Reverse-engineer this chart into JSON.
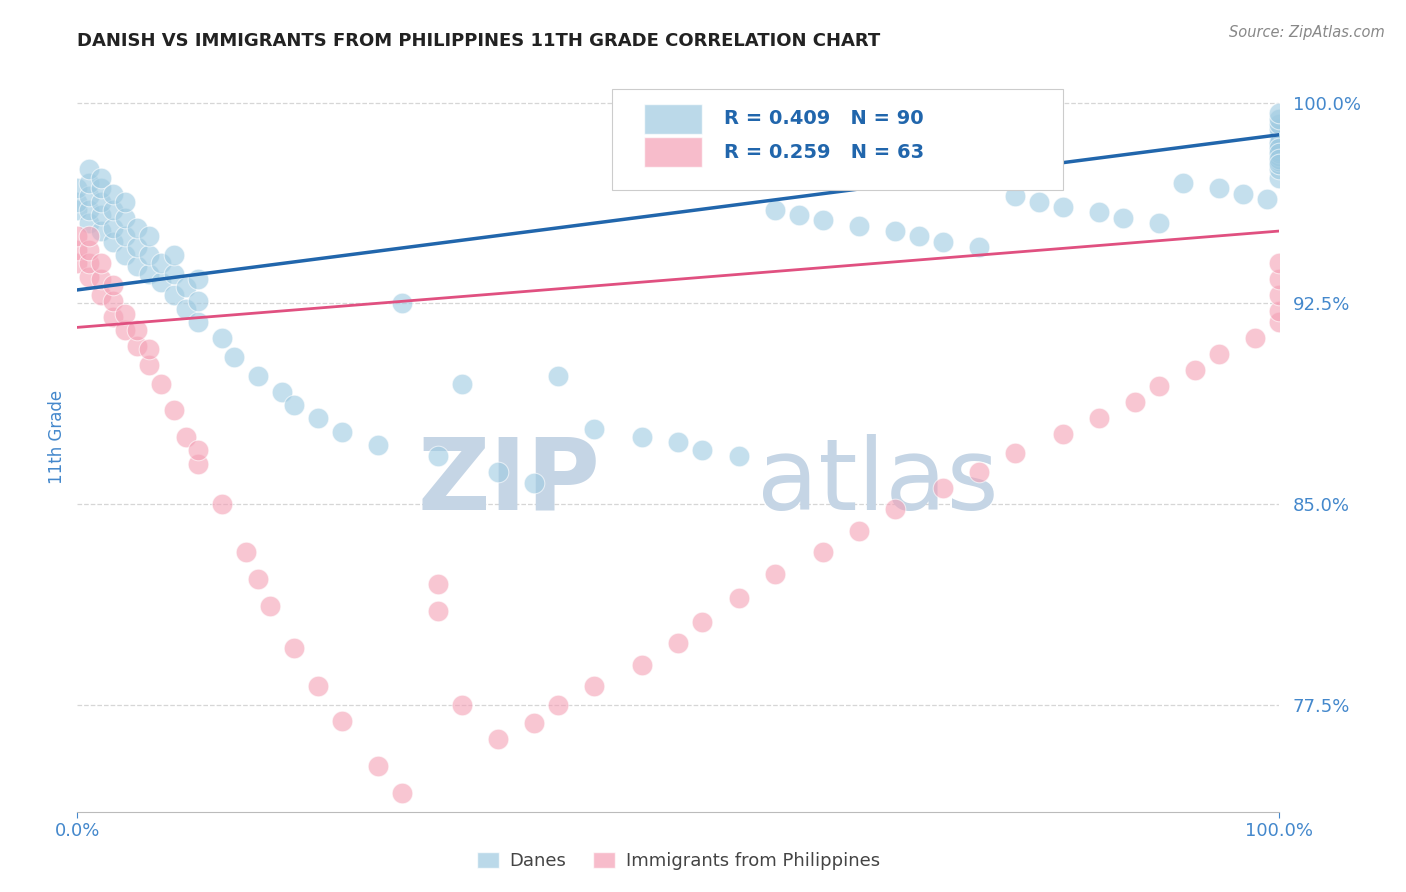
{
  "title": "DANISH VS IMMIGRANTS FROM PHILIPPINES 11TH GRADE CORRELATION CHART",
  "source_text": "Source: ZipAtlas.com",
  "ylabel": "11th Grade",
  "xlim": [
    0.0,
    1.0
  ],
  "ylim": [
    0.735,
    1.015
  ],
  "ytick_vals": [
    0.775,
    0.85,
    0.925,
    1.0
  ],
  "ytick_labels": [
    "77.5%",
    "85.0%",
    "92.5%",
    "100.0%"
  ],
  "xtick_vals": [
    0.0,
    1.0
  ],
  "xtick_labels": [
    "0.0%",
    "100.0%"
  ],
  "legend_r_danish": "R = 0.409",
  "legend_n_danish": "N = 90",
  "legend_r_phil": "R = 0.259",
  "legend_n_phil": "N = 63",
  "danish_color": "#9ecae1",
  "phil_color": "#f4a0b5",
  "trendline_danish_color": "#2166ac",
  "trendline_phil_color": "#e05080",
  "legend_text_color": "#2166ac",
  "tick_color": "#4488cc",
  "title_color": "#222222",
  "watermark_zip_color": "#d0dde8",
  "watermark_atlas_color": "#c0ccd8",
  "grid_color": "#cccccc",
  "background_color": "#ffffff",
  "danish_trend_y_start": 0.93,
  "danish_trend_y_end": 0.988,
  "phil_trend_y_start": 0.916,
  "phil_trend_y_end": 0.952,
  "danes_x": [
    0.0,
    0.0,
    0.0,
    0.01,
    0.01,
    0.01,
    0.01,
    0.01,
    0.02,
    0.02,
    0.02,
    0.02,
    0.02,
    0.03,
    0.03,
    0.03,
    0.03,
    0.04,
    0.04,
    0.04,
    0.04,
    0.05,
    0.05,
    0.05,
    0.06,
    0.06,
    0.06,
    0.07,
    0.07,
    0.08,
    0.08,
    0.08,
    0.09,
    0.09,
    0.1,
    0.1,
    0.1,
    0.12,
    0.13,
    0.15,
    0.17,
    0.18,
    0.2,
    0.22,
    0.25,
    0.27,
    0.3,
    0.32,
    0.35,
    0.38,
    0.4,
    0.43,
    0.47,
    0.5,
    0.52,
    0.55,
    0.58,
    0.6,
    0.62,
    0.65,
    0.68,
    0.7,
    0.72,
    0.75,
    0.78,
    0.8,
    0.82,
    0.85,
    0.87,
    0.9,
    0.92,
    0.95,
    0.97,
    0.99,
    1.0,
    1.0,
    1.0,
    1.0,
    1.0,
    1.0,
    1.0,
    1.0,
    1.0,
    1.0,
    1.0,
    1.0,
    1.0,
    1.0,
    1.0,
    1.0
  ],
  "danes_y": [
    0.96,
    0.963,
    0.968,
    0.955,
    0.96,
    0.965,
    0.97,
    0.975,
    0.952,
    0.958,
    0.963,
    0.968,
    0.972,
    0.948,
    0.953,
    0.96,
    0.966,
    0.943,
    0.95,
    0.957,
    0.963,
    0.939,
    0.946,
    0.953,
    0.936,
    0.943,
    0.95,
    0.933,
    0.94,
    0.928,
    0.936,
    0.943,
    0.923,
    0.931,
    0.918,
    0.926,
    0.934,
    0.912,
    0.905,
    0.898,
    0.892,
    0.887,
    0.882,
    0.877,
    0.872,
    0.925,
    0.868,
    0.895,
    0.862,
    0.858,
    0.898,
    0.878,
    0.875,
    0.873,
    0.87,
    0.868,
    0.96,
    0.958,
    0.956,
    0.954,
    0.952,
    0.95,
    0.948,
    0.946,
    0.965,
    0.963,
    0.961,
    0.959,
    0.957,
    0.955,
    0.97,
    0.968,
    0.966,
    0.964,
    0.972,
    0.975,
    0.978,
    0.98,
    0.982,
    0.985,
    0.988,
    0.99,
    0.992,
    0.994,
    0.996,
    0.985,
    0.983,
    0.981,
    0.979,
    0.977
  ],
  "phil_x": [
    0.0,
    0.0,
    0.0,
    0.01,
    0.01,
    0.01,
    0.01,
    0.02,
    0.02,
    0.02,
    0.03,
    0.03,
    0.03,
    0.04,
    0.04,
    0.05,
    0.05,
    0.06,
    0.06,
    0.07,
    0.08,
    0.09,
    0.1,
    0.1,
    0.12,
    0.14,
    0.15,
    0.16,
    0.18,
    0.2,
    0.22,
    0.25,
    0.27,
    0.3,
    0.32,
    0.35,
    0.38,
    0.4,
    0.43,
    0.47,
    0.5,
    0.52,
    0.55,
    0.3,
    0.58,
    0.62,
    0.65,
    0.68,
    0.72,
    0.75,
    0.78,
    0.82,
    0.85,
    0.88,
    0.9,
    0.93,
    0.95,
    0.98,
    1.0,
    1.0,
    1.0,
    1.0,
    1.0
  ],
  "phil_y": [
    0.94,
    0.945,
    0.95,
    0.935,
    0.94,
    0.945,
    0.95,
    0.928,
    0.934,
    0.94,
    0.92,
    0.926,
    0.932,
    0.915,
    0.921,
    0.909,
    0.915,
    0.902,
    0.908,
    0.895,
    0.885,
    0.875,
    0.865,
    0.87,
    0.85,
    0.832,
    0.822,
    0.812,
    0.796,
    0.782,
    0.769,
    0.752,
    0.742,
    0.82,
    0.775,
    0.762,
    0.768,
    0.775,
    0.782,
    0.79,
    0.798,
    0.806,
    0.815,
    0.81,
    0.824,
    0.832,
    0.84,
    0.848,
    0.856,
    0.862,
    0.869,
    0.876,
    0.882,
    0.888,
    0.894,
    0.9,
    0.906,
    0.912,
    0.918,
    0.922,
    0.928,
    0.934,
    0.94
  ]
}
